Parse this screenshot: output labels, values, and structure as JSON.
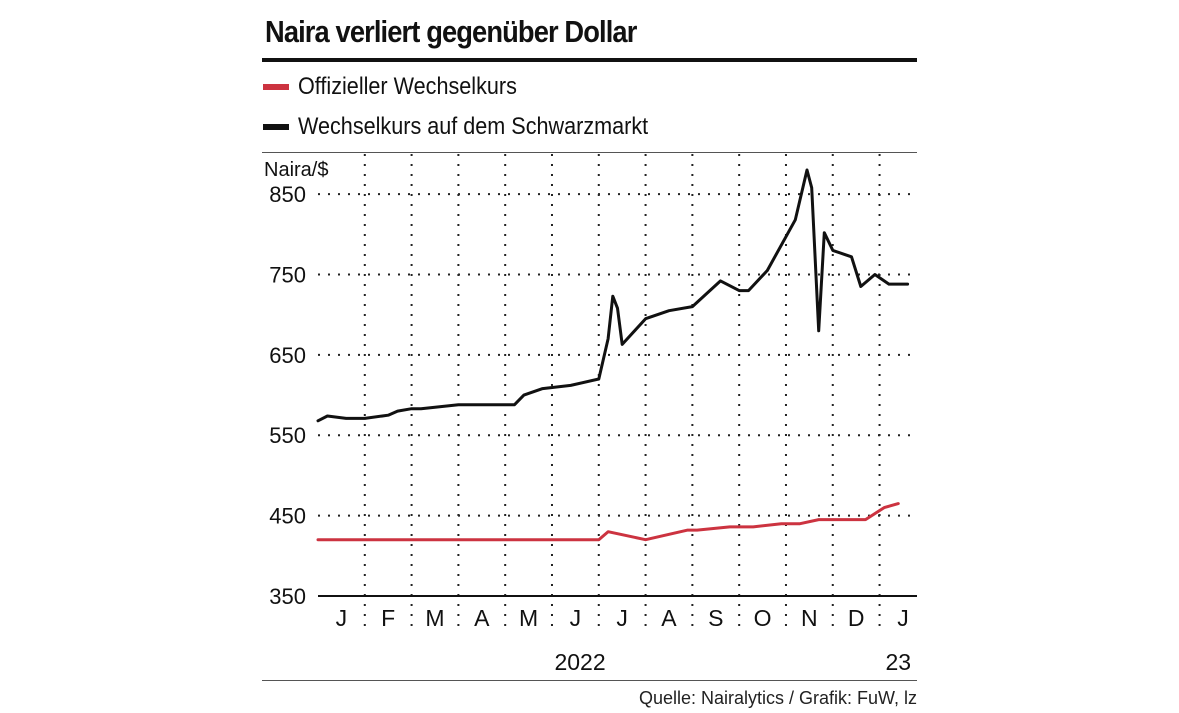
{
  "colors": {
    "official": "#cc3340",
    "black_market": "#111111",
    "grid": "#222222"
  },
  "header": {
    "title": "Naira verliert gegenüber Dollar"
  },
  "legend": {
    "items": [
      {
        "label": "Offizieller Wechselkurs",
        "color": "#cc3340"
      },
      {
        "label": "Wechselkurs auf dem Schwarzmarkt",
        "color": "#111111"
      }
    ]
  },
  "footer": {
    "source": "Quelle: Nairalytics / Grafik: FuW, lz"
  },
  "chart_data": {
    "type": "line",
    "title": "Naira verliert gegenüber Dollar",
    "ylabel": "Naira/$",
    "ylim": [
      350,
      880
    ],
    "yticks": [
      350,
      450,
      550,
      650,
      750,
      850
    ],
    "xlim": [
      0,
      12.8
    ],
    "x_unit": "months since 1 Jan 2022",
    "month_labels": [
      "J",
      "F",
      "M",
      "A",
      "M",
      "J",
      "J",
      "A",
      "S",
      "O",
      "N",
      "D",
      "J"
    ],
    "year_labels": [
      {
        "label": "2022",
        "position": 5.6
      },
      {
        "label": "23",
        "position": 12.4
      }
    ],
    "grid": true,
    "series": [
      {
        "name": "Wechselkurs auf dem Schwarzmarkt",
        "color": "#111111",
        "x": [
          0.0,
          0.2,
          0.6,
          1.0,
          1.5,
          1.7,
          2.0,
          2.2,
          3.0,
          3.5,
          3.8,
          4.2,
          4.4,
          4.8,
          5.4,
          6.0,
          6.2,
          6.3,
          6.4,
          6.5,
          7.0,
          7.5,
          8.0,
          8.6,
          9.0,
          9.2,
          9.6,
          10.2,
          10.45,
          10.55,
          10.7,
          10.82,
          11.0,
          11.25,
          11.4,
          11.6,
          11.9,
          12.2,
          12.6
        ],
        "values": [
          568,
          574,
          571,
          571,
          575,
          580,
          583,
          583,
          588,
          588,
          588,
          588,
          600,
          608,
          612,
          620,
          670,
          723,
          708,
          663,
          695,
          705,
          710,
          742,
          730,
          730,
          755,
          818,
          880,
          858,
          680,
          802,
          780,
          775,
          772,
          735,
          750,
          738,
          738
        ]
      },
      {
        "name": "Offizieller Wechselkurs",
        "color": "#cc3340",
        "x": [
          0.0,
          5.8,
          6.0,
          6.2,
          7.0,
          7.9,
          8.1,
          8.8,
          9.3,
          9.9,
          10.3,
          10.7,
          11.3,
          11.7,
          12.1,
          12.4
        ],
        "values": [
          420,
          420,
          420,
          430,
          420,
          432,
          432,
          436,
          436,
          440,
          440,
          445,
          445,
          445,
          460,
          465
        ]
      }
    ]
  }
}
